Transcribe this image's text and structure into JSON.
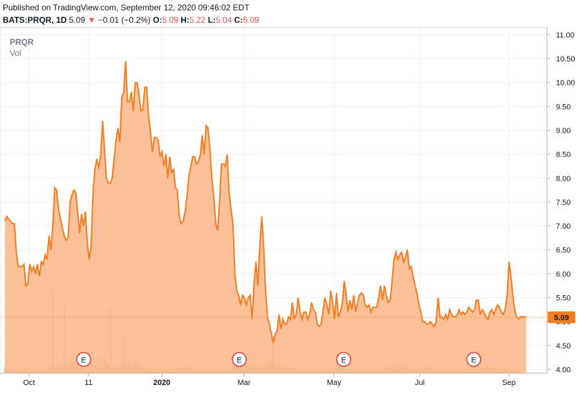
{
  "header": {
    "published": "Published on TradingView.com, September 12, 2020 09:46:02 EDT",
    "symbol": "BATS:PRQR, 1D",
    "last": "5.09",
    "change": "−0.01 (−0.2%)",
    "open_label": "O:",
    "open": "5.09",
    "high_label": "H:",
    "high": "5.22",
    "low_label": "L:",
    "low": "5.04",
    "close_label": "C:",
    "close": "5.09"
  },
  "legend": {
    "symbol": "PRQR",
    "volume": "Vol"
  },
  "colors": {
    "line": "#f57c1f",
    "area": "#fbb686",
    "volume": "#d9b59a",
    "price_label_bg": "#f57c1f",
    "earnings_marker": "#e53935",
    "grid": "#eef0f3"
  },
  "chart_data": {
    "type": "area",
    "title": "",
    "xlabel": "",
    "ylabel": "",
    "ylim": [
      3.92,
      11.15
    ],
    "price_axis_ticks": [
      "11.00",
      "10.50",
      "10.00",
      "9.50",
      "9.00",
      "8.50",
      "8.00",
      "7.50",
      "7.00",
      "6.50",
      "6.00",
      "5.50",
      "5.00",
      "4.50",
      "4.00"
    ],
    "x_ticks": [
      "Oct",
      "11",
      "2020",
      "Mar",
      "May",
      "Jul",
      "Sep"
    ],
    "last_price_label": "5.09",
    "earnings_marker_label": "E",
    "earnings_markers": 5,
    "grid": true,
    "series": [
      {
        "values": [
          7.1,
          7.2,
          7.15,
          7.1,
          7.05,
          7.05,
          6.45,
          6.15,
          6.15,
          6.15,
          6.2,
          5.75,
          5.8,
          6.2,
          6.05,
          6.15,
          6.0,
          6.2,
          5.95,
          6.25,
          6.2,
          6.4,
          6.3,
          6.8,
          6.5,
          7.0,
          7.8,
          7.75,
          7.35,
          7.15,
          6.95,
          6.8,
          6.7,
          6.75,
          7.5,
          7.65,
          7.75,
          7.7,
          7.3,
          6.85,
          7.25,
          7.0,
          7.3,
          6.65,
          6.3,
          6.6,
          7.7,
          8.2,
          8.4,
          8.2,
          8.5,
          9.2,
          8.6,
          8.0,
          7.9,
          7.9,
          8.0,
          8.4,
          8.8,
          9.05,
          8.75,
          9.7,
          9.8,
          10.45,
          9.6,
          9.6,
          9.8,
          9.4,
          10.0,
          10.0,
          9.75,
          9.4,
          9.45,
          9.9,
          9.9,
          9.3,
          8.95,
          8.55,
          8.85,
          8.85,
          8.8,
          8.45,
          8.55,
          8.25,
          8.5,
          8.0,
          8.45,
          8.1,
          8.2,
          7.8,
          7.75,
          7.2,
          7.05,
          7.1,
          7.3,
          7.6,
          8.05,
          8.25,
          8.45,
          8.45,
          8.3,
          8.35,
          8.5,
          8.9,
          8.5,
          9.1,
          9.05,
          8.6,
          8.0,
          7.6,
          7.05,
          6.9,
          7.5,
          8.3,
          8.3,
          8.25,
          8.5,
          7.7,
          7.35,
          7.05,
          6.0,
          5.65,
          5.55,
          5.35,
          5.55,
          5.5,
          5.35,
          5.5,
          5.55,
          5.05,
          5.8,
          6.25,
          5.75,
          6.6,
          7.2,
          6.6,
          5.65,
          5.1,
          4.95,
          4.75,
          4.55,
          4.75,
          4.8,
          5.15,
          4.85,
          5.05,
          4.95,
          4.95,
          5.1,
          5.05,
          5.4,
          5.05,
          5.15,
          5.5,
          5.2,
          5.05,
          5.2,
          5.2,
          5.05,
          5.15,
          5.4,
          5.25,
          5.2,
          4.95,
          4.9,
          4.95,
          5.25,
          5.5,
          5.35,
          5.15,
          5.65,
          5.4,
          5.05,
          5.6,
          5.1,
          5.2,
          5.35,
          5.85,
          5.6,
          5.2,
          5.45,
          5.25,
          5.55,
          5.2,
          5.4,
          5.55,
          5.6,
          5.55,
          5.35,
          5.3,
          5.35,
          5.2,
          5.3,
          5.3,
          5.3,
          5.5,
          5.75,
          5.45,
          5.75,
          5.55,
          5.4,
          5.45,
          5.85,
          6.3,
          6.45,
          6.3,
          6.4,
          6.45,
          6.25,
          6.35,
          6.5,
          6.1,
          6.15,
          5.95,
          5.75,
          5.6,
          5.35,
          5.2,
          5.0,
          5.0,
          4.95,
          4.95,
          5.0,
          4.95,
          4.9,
          5.0,
          5.5,
          5.1,
          5.1,
          5.05,
          5.15,
          5.05,
          5.25,
          5.15,
          5.1,
          5.1,
          5.15,
          5.25,
          5.15,
          5.2,
          5.15,
          5.2,
          5.3,
          5.25,
          5.2,
          5.25,
          5.45,
          5.45,
          5.15,
          5.25,
          5.2,
          5.1,
          5.05,
          5.2,
          5.25,
          5.15,
          5.25,
          5.35,
          5.3,
          5.2,
          5.15,
          5.25,
          5.55,
          6.25,
          5.95,
          5.55,
          5.25,
          5.1,
          5.05,
          5.1,
          5.1,
          5.1,
          5.09
        ]
      }
    ],
    "volume": {
      "values": [
        3,
        2,
        2,
        2,
        2,
        2,
        2,
        2,
        2,
        2,
        2,
        3,
        3,
        2,
        2,
        2,
        3,
        2,
        2,
        3,
        2,
        2,
        3,
        3,
        4,
        3,
        3,
        4,
        5,
        4,
        3,
        3,
        4,
        4,
        5,
        5,
        6,
        5,
        4,
        3,
        3,
        2,
        3,
        4,
        5,
        5,
        4,
        5,
        6,
        7,
        6,
        8,
        7,
        5,
        4,
        4,
        3,
        3,
        3,
        3,
        4,
        4,
        5,
        6,
        5,
        6,
        4,
        5,
        5,
        6,
        4,
        3,
        3,
        3,
        3,
        2,
        2,
        2,
        2,
        2,
        2,
        2,
        2,
        2,
        2,
        2,
        2,
        2,
        2,
        2,
        3,
        3,
        3,
        3,
        3,
        4,
        3,
        3,
        2,
        2,
        2,
        2,
        2,
        2,
        2,
        2,
        2,
        2,
        2,
        2,
        2,
        2,
        2,
        2,
        2,
        2,
        2,
        2,
        2,
        3,
        3,
        3,
        3,
        3,
        3,
        4,
        4,
        4,
        3,
        3,
        3,
        3,
        3,
        3,
        3,
        4,
        4,
        4,
        5,
        6,
        6,
        5,
        4,
        4,
        3,
        3,
        3,
        3,
        3,
        3,
        3,
        3,
        2,
        2,
        2,
        2,
        2,
        2,
        2,
        2,
        2,
        2,
        2,
        2,
        3,
        2,
        2,
        2,
        2,
        2,
        2,
        2,
        3,
        3,
        3,
        3,
        3,
        2,
        2,
        2,
        2,
        2,
        2,
        2,
        2,
        2,
        2,
        3,
        3,
        2,
        2,
        2,
        2,
        2,
        2,
        2,
        2,
        2,
        3,
        3,
        3,
        3,
        3,
        3,
        3,
        4,
        4,
        4,
        3,
        3,
        3,
        3,
        3,
        2,
        2,
        2,
        2,
        2,
        2,
        3,
        3,
        3,
        3,
        3,
        2,
        2,
        2,
        2,
        2,
        2,
        2,
        2,
        2,
        2,
        2,
        2,
        2,
        2,
        2,
        2,
        2,
        2,
        2,
        2,
        2,
        2,
        2,
        2,
        2,
        3,
        3,
        4,
        4,
        3,
        3,
        2,
        2,
        2,
        2,
        2,
        2,
        2,
        2,
        2,
        2,
        2,
        2,
        2,
        2,
        2
      ],
      "spikes": {
        "25": 40,
        "31": 35,
        "55": 32,
        "62": 17,
        "140": 18
      }
    }
  }
}
